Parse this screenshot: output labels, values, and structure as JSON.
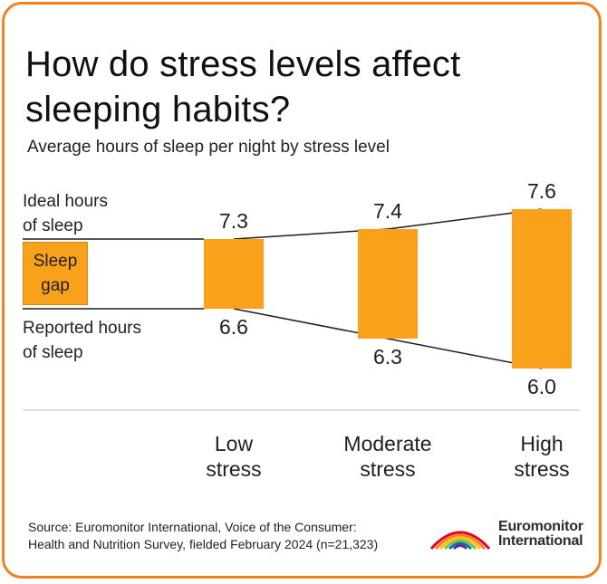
{
  "title": "How do stress levels affect sleeping habits?",
  "subtitle": "Average hours of sleep per night by stress level",
  "labels": {
    "ideal_line1": "Ideal hours",
    "ideal_line2": "of sleep",
    "legend_line1": "Sleep",
    "legend_line2": "gap",
    "reported_line1": "Reported hours",
    "reported_line2": "of sleep"
  },
  "chart_data": {
    "type": "bar",
    "categories": [
      "Low stress",
      "Moderate stress",
      "High stress"
    ],
    "category_lines": [
      [
        "Low",
        "stress"
      ],
      [
        "Moderate",
        "stress"
      ],
      [
        "High",
        "stress"
      ]
    ],
    "series": [
      {
        "name": "Ideal hours of sleep",
        "values": [
          7.3,
          7.4,
          7.6
        ]
      },
      {
        "name": "Reported hours of sleep",
        "values": [
          6.6,
          6.3,
          6.0
        ]
      }
    ],
    "value_labels_ideal": [
      "7.3",
      "7.4",
      "7.6"
    ],
    "value_labels_reported": [
      "6.6",
      "6.3",
      "6.0"
    ],
    "bar_color": "#f9a11b"
  },
  "source": {
    "line1": "Source: Euromonitor International, Voice of the Consumer:",
    "line2": "Health and Nutrition Survey, fielded February 2024 (n=21,323)"
  },
  "logo": {
    "line1": "Euromonitor",
    "line2": "International"
  },
  "colors": {
    "border": "#f58220",
    "bar": "#f9a11b",
    "text": "#1f1f1f"
  }
}
